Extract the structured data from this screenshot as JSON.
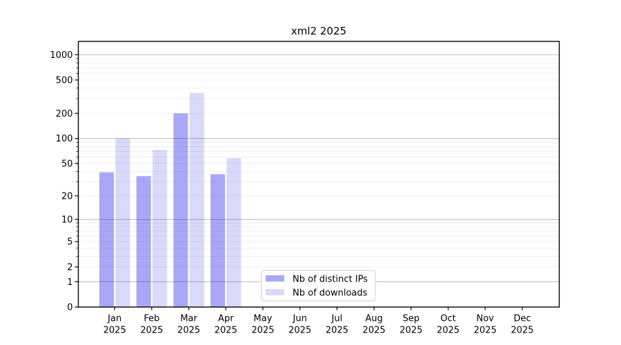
{
  "chart_data": {
    "type": "bar",
    "title": "xml2 2025",
    "year_label": "2025",
    "categories": [
      "Jan",
      "Feb",
      "Mar",
      "Apr",
      "May",
      "Jun",
      "Jul",
      "Aug",
      "Sep",
      "Oct",
      "Nov",
      "Dec"
    ],
    "series": [
      {
        "name": "Nb of distinct IPs",
        "color": "rgba(0,0,232,0.34)",
        "values": [
          39,
          35,
          200,
          37,
          0,
          0,
          0,
          0,
          0,
          0,
          0,
          0
        ]
      },
      {
        "name": "Nb of downloads",
        "color": "rgba(0,0,232,0.15)",
        "values": [
          100,
          73,
          350,
          58,
          0,
          0,
          0,
          0,
          0,
          0,
          0,
          0
        ]
      }
    ],
    "y_ticks": [
      "0",
      "1",
      "2",
      "5",
      "10",
      "20",
      "50",
      "100",
      "200",
      "500",
      "1000"
    ],
    "y_tick_values": [
      0,
      1,
      2,
      5,
      10,
      20,
      50,
      100,
      200,
      500,
      1000
    ],
    "major_gridlines": [
      1,
      10,
      100,
      1000
    ],
    "minor_gridlines": [
      2,
      3,
      4,
      5,
      6,
      7,
      8,
      9,
      20,
      30,
      40,
      50,
      60,
      70,
      80,
      90,
      200,
      300,
      400,
      500,
      600,
      700,
      800,
      900
    ],
    "minor_axis_ticks": [
      3,
      4,
      6,
      7,
      8,
      9,
      30,
      40,
      60,
      70,
      80,
      90,
      300,
      400,
      600,
      700,
      800,
      900
    ],
    "scale": "log10(1+x)",
    "ylim": [
      0,
      1440
    ],
    "grid": true,
    "legend_position": "lower center",
    "xlabel": "",
    "ylabel": ""
  },
  "colors": {
    "background": "#ffffff",
    "axis_frame": "#000000",
    "gridline_major": "#b9b9b9",
    "gridline_minor": "#ededed",
    "tick_mark": "#000000",
    "bar_distinct_ips_rendered": "#a8a8f7",
    "bar_downloads_rendered": "#d8d8fb"
  }
}
